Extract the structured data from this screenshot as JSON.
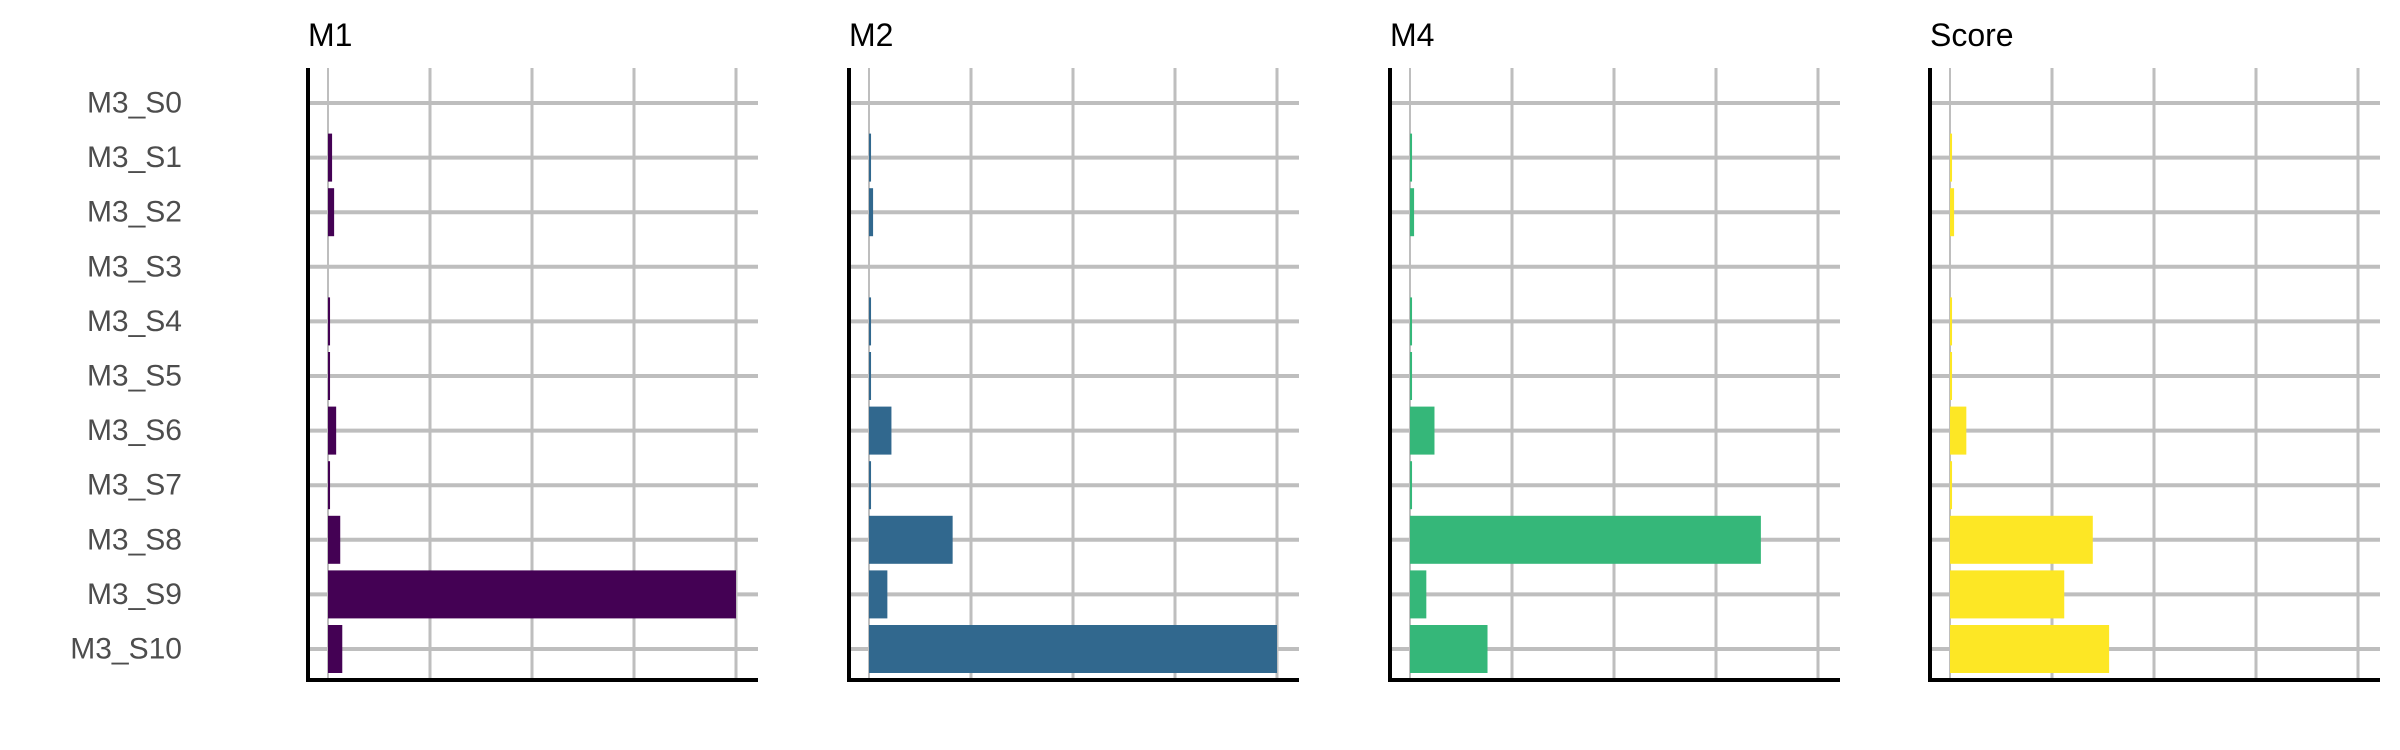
{
  "chart_data": {
    "type": "bar",
    "orientation": "horizontal",
    "categories": [
      "M3_S0",
      "M3_S1",
      "M3_S2",
      "M3_S3",
      "M3_S4",
      "M3_S5",
      "M3_S6",
      "M3_S7",
      "M3_S8",
      "M3_S9",
      "M3_S10"
    ],
    "grid": true,
    "legend": "none",
    "series": [
      {
        "name": "M1",
        "color": "#440154",
        "max": 1.0,
        "values": [
          0.0,
          0.01,
          0.015,
          0.0,
          0.005,
          0.005,
          0.02,
          0.005,
          0.03,
          1.0,
          0.035
        ]
      },
      {
        "name": "M2",
        "color": "#31688E",
        "max": 1.0,
        "values": [
          0.0,
          0.005,
          0.01,
          0.0,
          0.005,
          0.005,
          0.055,
          0.005,
          0.205,
          0.045,
          1.0
        ]
      },
      {
        "name": "M4",
        "color": "#35B779",
        "max": 1.0,
        "values": [
          0.0,
          0.005,
          0.01,
          0.0,
          0.005,
          0.005,
          0.06,
          0.005,
          0.86,
          0.04,
          0.19
        ]
      },
      {
        "name": "Score",
        "color": "#FDE725",
        "max": 1.0,
        "values": [
          0.0,
          0.005,
          0.01,
          0.0,
          0.005,
          0.005,
          0.04,
          0.005,
          0.35,
          0.28,
          0.39
        ]
      }
    ]
  }
}
